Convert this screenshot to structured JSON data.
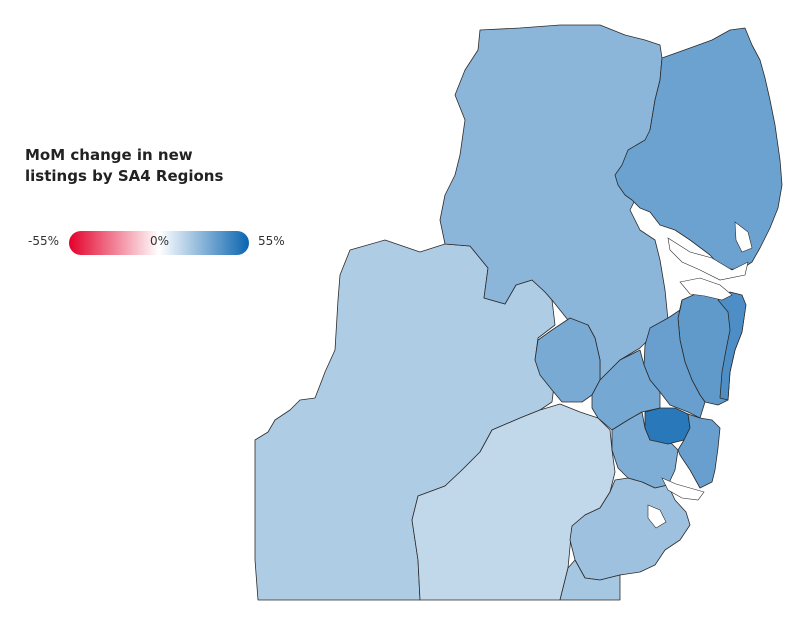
{
  "legend": {
    "title_line1": "MoM change in new",
    "title_line2": "listings by SA4 Regions",
    "min_label": "-55%",
    "mid_label": "0%",
    "max_label": "55%",
    "min_value": -55,
    "max_value": 55,
    "negative_color": "#e4002b",
    "neutral_color": "#ffffff",
    "positive_color": "#0a64b0"
  },
  "regions": [
    {
      "id": "far-west",
      "change": 18
    },
    {
      "id": "southern-highlands",
      "change": 14
    },
    {
      "id": "central-west",
      "change": 26
    },
    {
      "id": "central-coast-north",
      "change": 33
    },
    {
      "id": "pocket",
      "change": 30
    },
    {
      "id": "inner-north",
      "change": 36
    },
    {
      "id": "west-strip",
      "change": 34
    },
    {
      "id": "parramatta",
      "change": 31
    },
    {
      "id": "northern-beaches",
      "change": 40
    },
    {
      "id": "south-west",
      "change": 29
    },
    {
      "id": "inner-sydney",
      "change": 48
    },
    {
      "id": "east",
      "change": 34
    },
    {
      "id": "south-coast",
      "change": 22
    },
    {
      "id": "south-inland",
      "change": 20
    }
  ]
}
